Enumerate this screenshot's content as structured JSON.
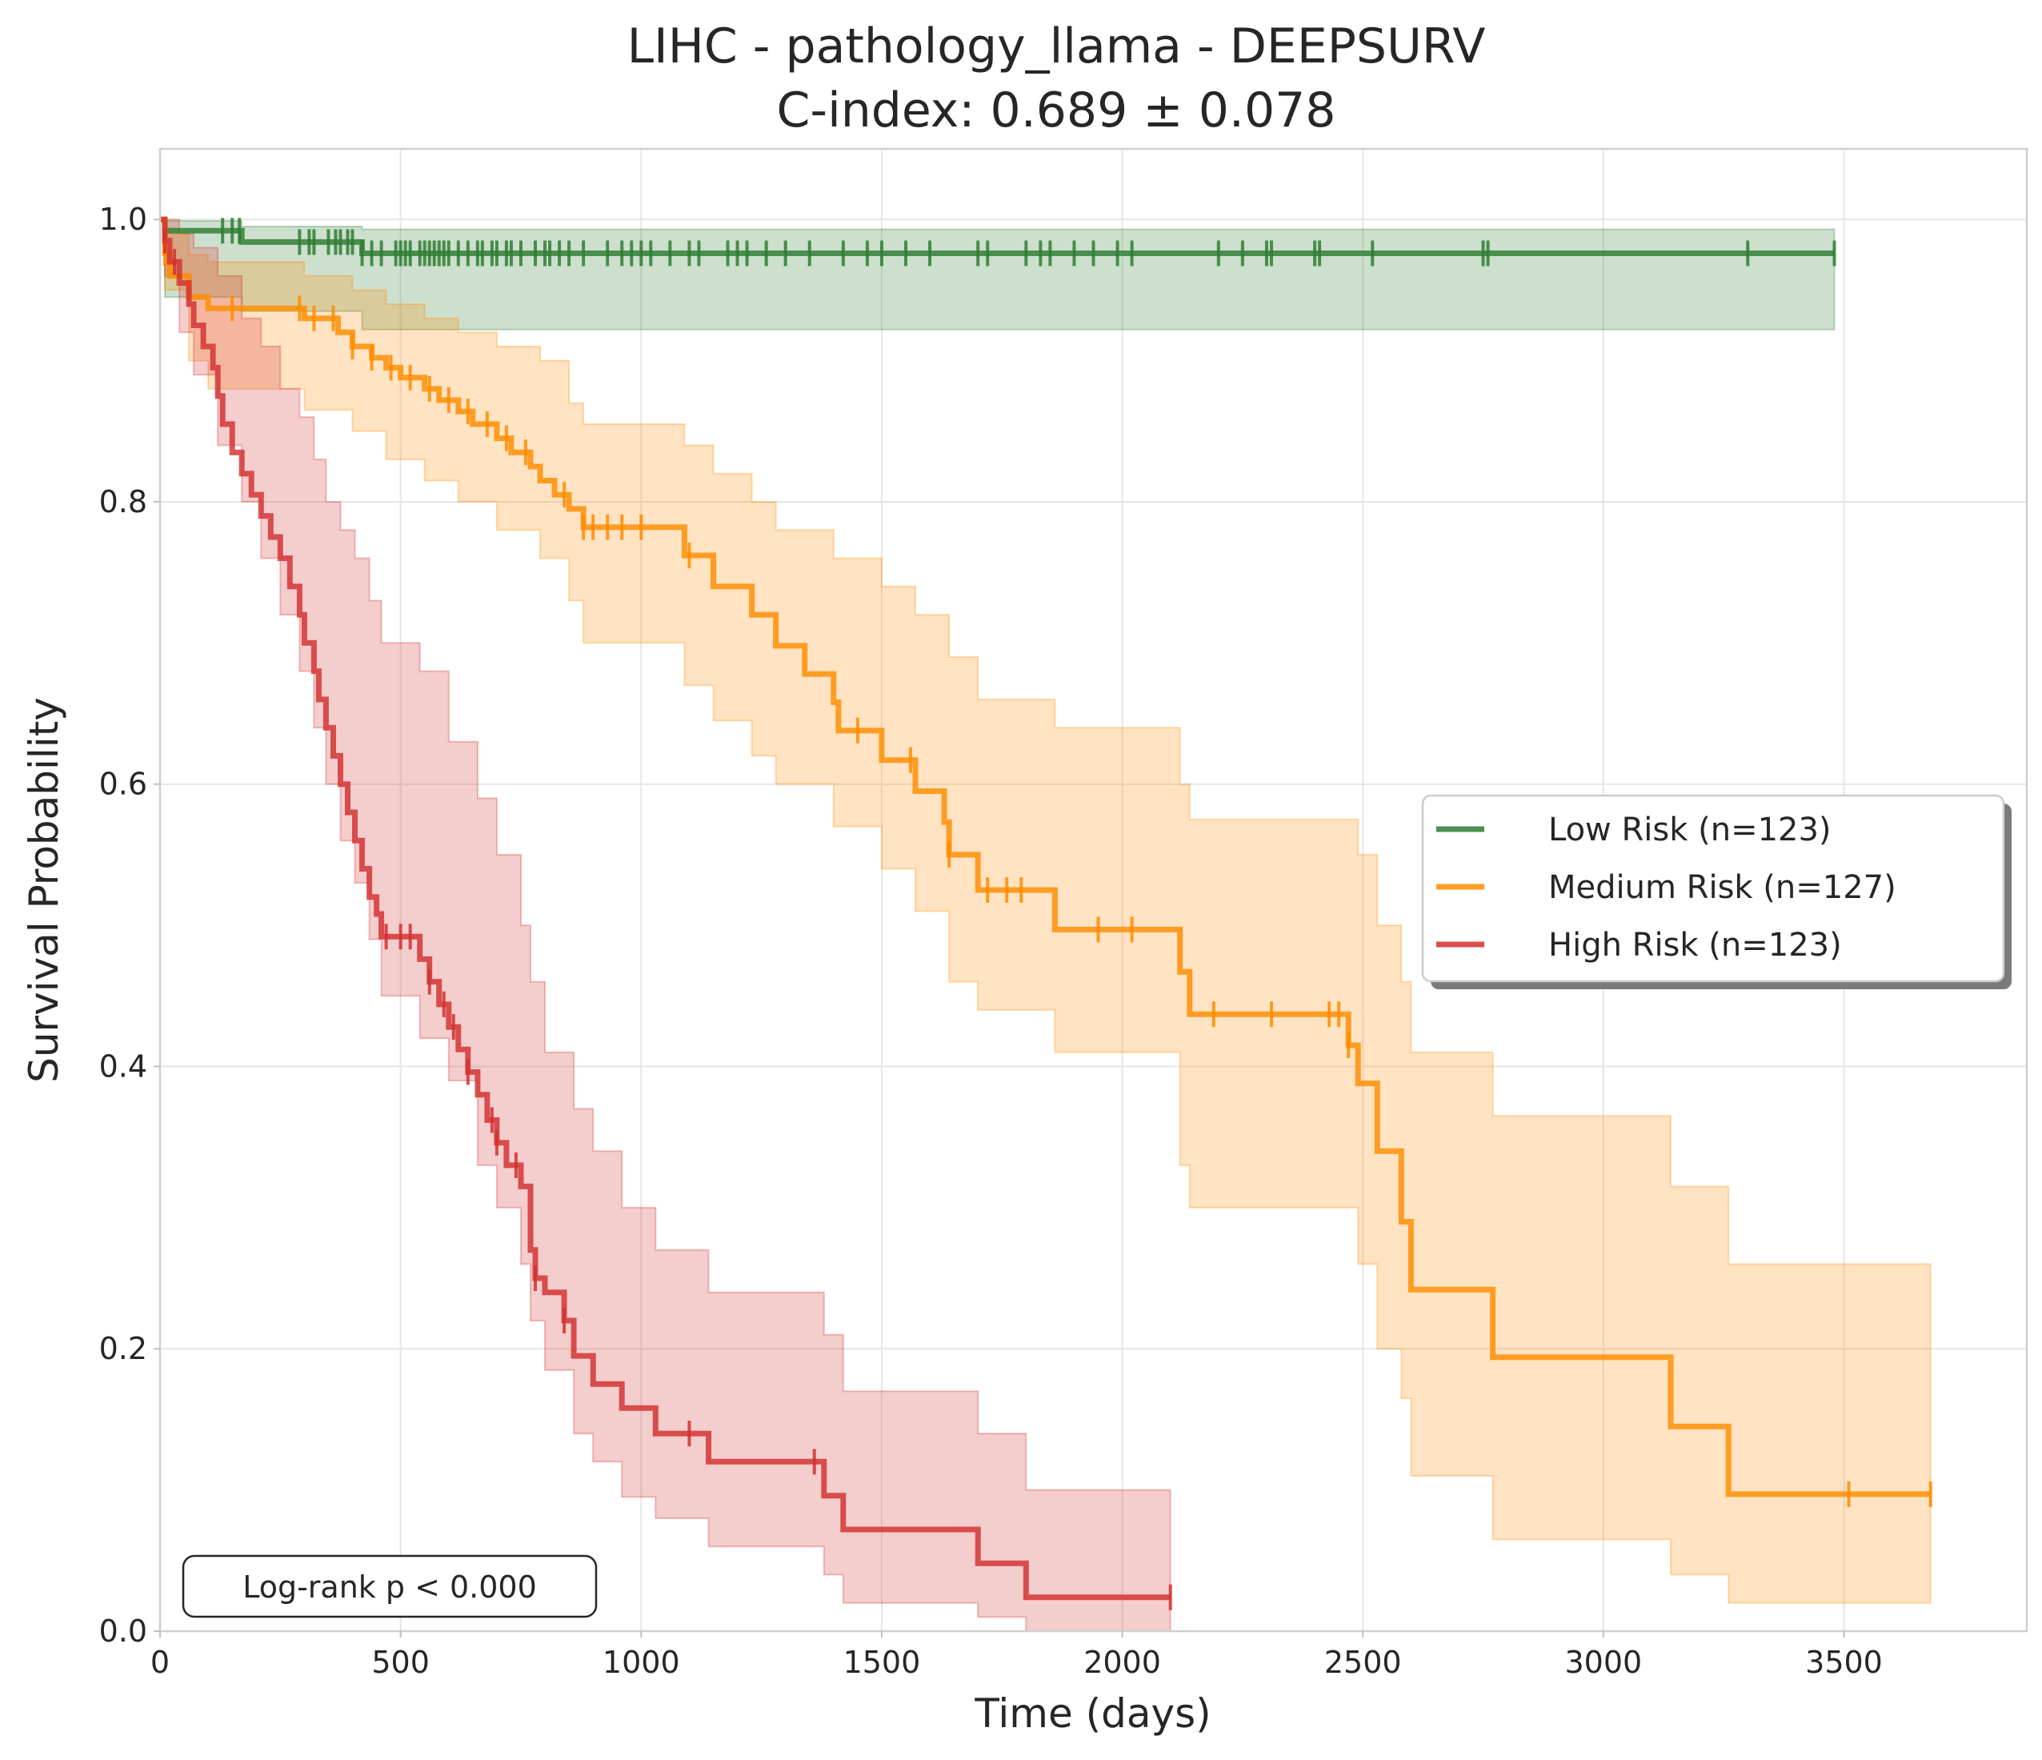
{
  "chart_data": {
    "type": "line",
    "subtype": "kaplan-meier",
    "title": "LIHC - pathology_llama - DEEPSURV",
    "subtitle": "C-index: 0.689 ± 0.078",
    "xlabel": "Time (days)",
    "ylabel": "Survival Probability",
    "xlim": [
      0,
      3880
    ],
    "ylim": [
      0,
      1.05
    ],
    "xticks": [
      0,
      500,
      1000,
      1500,
      2000,
      2500,
      3000,
      3500
    ],
    "yticks": [
      0.0,
      0.2,
      0.4,
      0.6,
      0.8,
      1.0
    ],
    "xtick_labels": [
      "0",
      "500",
      "1000",
      "1500",
      "2000",
      "2500",
      "3000",
      "3500"
    ],
    "ytick_labels": [
      "0.0",
      "0.2",
      "0.4",
      "0.6",
      "0.8",
      "1.0"
    ],
    "grid": true,
    "legend_position": "right",
    "annotation": "Log-rank p < 0.000",
    "series": [
      {
        "name": "Low Risk (n=123)",
        "color": "#2e7d32",
        "steps": [
          [
            0,
            1.0
          ],
          [
            10,
            0.992
          ],
          [
            170,
            0.984
          ],
          [
            420,
            0.976
          ],
          [
            3480,
            0.976
          ]
        ],
        "ci": [
          [
            0,
            1.0,
            1.0
          ],
          [
            10,
            0.999,
            0.945
          ],
          [
            170,
            0.995,
            0.935
          ],
          [
            420,
            0.993,
            0.922
          ],
          [
            3480,
            0.993,
            0.922
          ]
        ],
        "censor": [
          130,
          150,
          165,
          290,
          310,
          320,
          350,
          365,
          375,
          390,
          400,
          420,
          440,
          460,
          490,
          500,
          510,
          520,
          540,
          550,
          560,
          570,
          580,
          590,
          600,
          620,
          640,
          660,
          670,
          690,
          700,
          720,
          730,
          750,
          780,
          800,
          810,
          830,
          850,
          880,
          930,
          960,
          980,
          1000,
          1020,
          1060,
          1100,
          1120,
          1180,
          1200,
          1220,
          1260,
          1300,
          1350,
          1420,
          1470,
          1500,
          1550,
          1600,
          1700,
          1720,
          1800,
          1830,
          1850,
          1900,
          1940,
          1990,
          2020,
          2200,
          2250,
          2300,
          2310,
          2400,
          2410,
          2520,
          2750,
          2760,
          3300,
          3480
        ]
      },
      {
        "name": "Medium Risk (n=127)",
        "color": "#ff8c00",
        "steps": [
          [
            0,
            1.0
          ],
          [
            10,
            0.976
          ],
          [
            20,
            0.96
          ],
          [
            60,
            0.945
          ],
          [
            100,
            0.937
          ],
          [
            300,
            0.93
          ],
          [
            370,
            0.92
          ],
          [
            400,
            0.91
          ],
          [
            440,
            0.902
          ],
          [
            470,
            0.895
          ],
          [
            500,
            0.888
          ],
          [
            550,
            0.88
          ],
          [
            580,
            0.872
          ],
          [
            620,
            0.864
          ],
          [
            650,
            0.855
          ],
          [
            700,
            0.845
          ],
          [
            730,
            0.835
          ],
          [
            770,
            0.825
          ],
          [
            790,
            0.815
          ],
          [
            820,
            0.805
          ],
          [
            850,
            0.795
          ],
          [
            880,
            0.782
          ],
          [
            1090,
            0.762
          ],
          [
            1150,
            0.74
          ],
          [
            1230,
            0.72
          ],
          [
            1280,
            0.698
          ],
          [
            1340,
            0.678
          ],
          [
            1400,
            0.658
          ],
          [
            1410,
            0.638
          ],
          [
            1500,
            0.617
          ],
          [
            1570,
            0.595
          ],
          [
            1630,
            0.573
          ],
          [
            1640,
            0.55
          ],
          [
            1700,
            0.525
          ],
          [
            1860,
            0.497
          ],
          [
            2120,
            0.467
          ],
          [
            2140,
            0.437
          ],
          [
            2470,
            0.415
          ],
          [
            2490,
            0.388
          ],
          [
            2530,
            0.34
          ],
          [
            2580,
            0.29
          ],
          [
            2600,
            0.242
          ],
          [
            2770,
            0.194
          ],
          [
            3140,
            0.145
          ],
          [
            3260,
            0.097
          ],
          [
            3680,
            0.097
          ]
        ],
        "ci": [
          [
            0,
            1.0,
            1.0
          ],
          [
            10,
            0.99,
            0.95
          ],
          [
            60,
            0.975,
            0.9
          ],
          [
            100,
            0.97,
            0.88
          ],
          [
            300,
            0.96,
            0.865
          ],
          [
            400,
            0.95,
            0.85
          ],
          [
            470,
            0.94,
            0.83
          ],
          [
            550,
            0.93,
            0.815
          ],
          [
            620,
            0.92,
            0.8
          ],
          [
            700,
            0.91,
            0.78
          ],
          [
            790,
            0.9,
            0.76
          ],
          [
            850,
            0.87,
            0.73
          ],
          [
            880,
            0.855,
            0.7
          ],
          [
            1090,
            0.84,
            0.67
          ],
          [
            1150,
            0.82,
            0.645
          ],
          [
            1230,
            0.8,
            0.62
          ],
          [
            1280,
            0.78,
            0.6
          ],
          [
            1400,
            0.76,
            0.57
          ],
          [
            1500,
            0.74,
            0.54
          ],
          [
            1570,
            0.72,
            0.51
          ],
          [
            1640,
            0.69,
            0.46
          ],
          [
            1700,
            0.66,
            0.44
          ],
          [
            1860,
            0.64,
            0.41
          ],
          [
            2120,
            0.6,
            0.33
          ],
          [
            2140,
            0.575,
            0.3
          ],
          [
            2490,
            0.55,
            0.26
          ],
          [
            2530,
            0.5,
            0.2
          ],
          [
            2580,
            0.46,
            0.165
          ],
          [
            2600,
            0.41,
            0.11
          ],
          [
            2770,
            0.365,
            0.065
          ],
          [
            3140,
            0.315,
            0.04
          ],
          [
            3260,
            0.26,
            0.02
          ],
          [
            3680,
            0.26,
            0.02
          ]
        ],
        "censor": [
          10,
          150,
          290,
          320,
          360,
          400,
          440,
          480,
          520,
          560,
          600,
          640,
          680,
          720,
          760,
          840,
          880,
          900,
          930,
          960,
          1000,
          1100,
          1450,
          1560,
          1640,
          1720,
          1760,
          1790,
          1950,
          2020,
          2190,
          2310,
          2430,
          2450,
          2470,
          3510,
          3680
        ]
      },
      {
        "name": "High Risk (n=123)",
        "color": "#d32f2f",
        "steps": [
          [
            0,
            1.0
          ],
          [
            10,
            0.985
          ],
          [
            20,
            0.97
          ],
          [
            40,
            0.955
          ],
          [
            60,
            0.94
          ],
          [
            70,
            0.925
          ],
          [
            90,
            0.91
          ],
          [
            110,
            0.895
          ],
          [
            120,
            0.875
          ],
          [
            130,
            0.855
          ],
          [
            150,
            0.835
          ],
          [
            170,
            0.82
          ],
          [
            190,
            0.805
          ],
          [
            210,
            0.79
          ],
          [
            230,
            0.775
          ],
          [
            250,
            0.76
          ],
          [
            270,
            0.74
          ],
          [
            290,
            0.72
          ],
          [
            300,
            0.7
          ],
          [
            320,
            0.68
          ],
          [
            330,
            0.66
          ],
          [
            345,
            0.64
          ],
          [
            360,
            0.62
          ],
          [
            375,
            0.6
          ],
          [
            390,
            0.58
          ],
          [
            405,
            0.56
          ],
          [
            420,
            0.54
          ],
          [
            435,
            0.52
          ],
          [
            450,
            0.508
          ],
          [
            460,
            0.492
          ],
          [
            540,
            0.476
          ],
          [
            560,
            0.46
          ],
          [
            580,
            0.444
          ],
          [
            600,
            0.428
          ],
          [
            620,
            0.412
          ],
          [
            640,
            0.396
          ],
          [
            660,
            0.38
          ],
          [
            680,
            0.362
          ],
          [
            700,
            0.346
          ],
          [
            720,
            0.33
          ],
          [
            750,
            0.315
          ],
          [
            770,
            0.27
          ],
          [
            780,
            0.25
          ],
          [
            800,
            0.24
          ],
          [
            840,
            0.22
          ],
          [
            860,
            0.195
          ],
          [
            900,
            0.175
          ],
          [
            960,
            0.158
          ],
          [
            1030,
            0.14
          ],
          [
            1140,
            0.12
          ],
          [
            1380,
            0.096
          ],
          [
            1420,
            0.072
          ],
          [
            1700,
            0.048
          ],
          [
            1800,
            0.024
          ],
          [
            2100,
            0.024
          ]
        ],
        "ci": [
          [
            0,
            1.0,
            1.0
          ],
          [
            10,
            1.0,
            0.96
          ],
          [
            40,
            0.99,
            0.92
          ],
          [
            70,
            0.98,
            0.89
          ],
          [
            120,
            0.96,
            0.84
          ],
          [
            170,
            0.93,
            0.8
          ],
          [
            210,
            0.91,
            0.76
          ],
          [
            250,
            0.88,
            0.72
          ],
          [
            290,
            0.86,
            0.68
          ],
          [
            320,
            0.83,
            0.64
          ],
          [
            345,
            0.8,
            0.6
          ],
          [
            375,
            0.78,
            0.56
          ],
          [
            405,
            0.76,
            0.53
          ],
          [
            435,
            0.73,
            0.49
          ],
          [
            460,
            0.7,
            0.45
          ],
          [
            540,
            0.68,
            0.42
          ],
          [
            600,
            0.63,
            0.39
          ],
          [
            660,
            0.59,
            0.33
          ],
          [
            700,
            0.55,
            0.3
          ],
          [
            750,
            0.5,
            0.26
          ],
          [
            770,
            0.46,
            0.22
          ],
          [
            800,
            0.41,
            0.185
          ],
          [
            860,
            0.37,
            0.14
          ],
          [
            900,
            0.34,
            0.12
          ],
          [
            960,
            0.3,
            0.095
          ],
          [
            1030,
            0.27,
            0.08
          ],
          [
            1140,
            0.24,
            0.06
          ],
          [
            1380,
            0.21,
            0.04
          ],
          [
            1420,
            0.17,
            0.02
          ],
          [
            1700,
            0.14,
            0.01
          ],
          [
            1800,
            0.1,
            0.0
          ],
          [
            2100,
            0.1,
            0.0
          ]
        ],
        "censor": [
          10,
          30,
          470,
          500,
          520,
          560,
          590,
          610,
          640,
          690,
          700,
          740,
          780,
          840,
          1100,
          1360,
          2100
        ]
      }
    ]
  }
}
